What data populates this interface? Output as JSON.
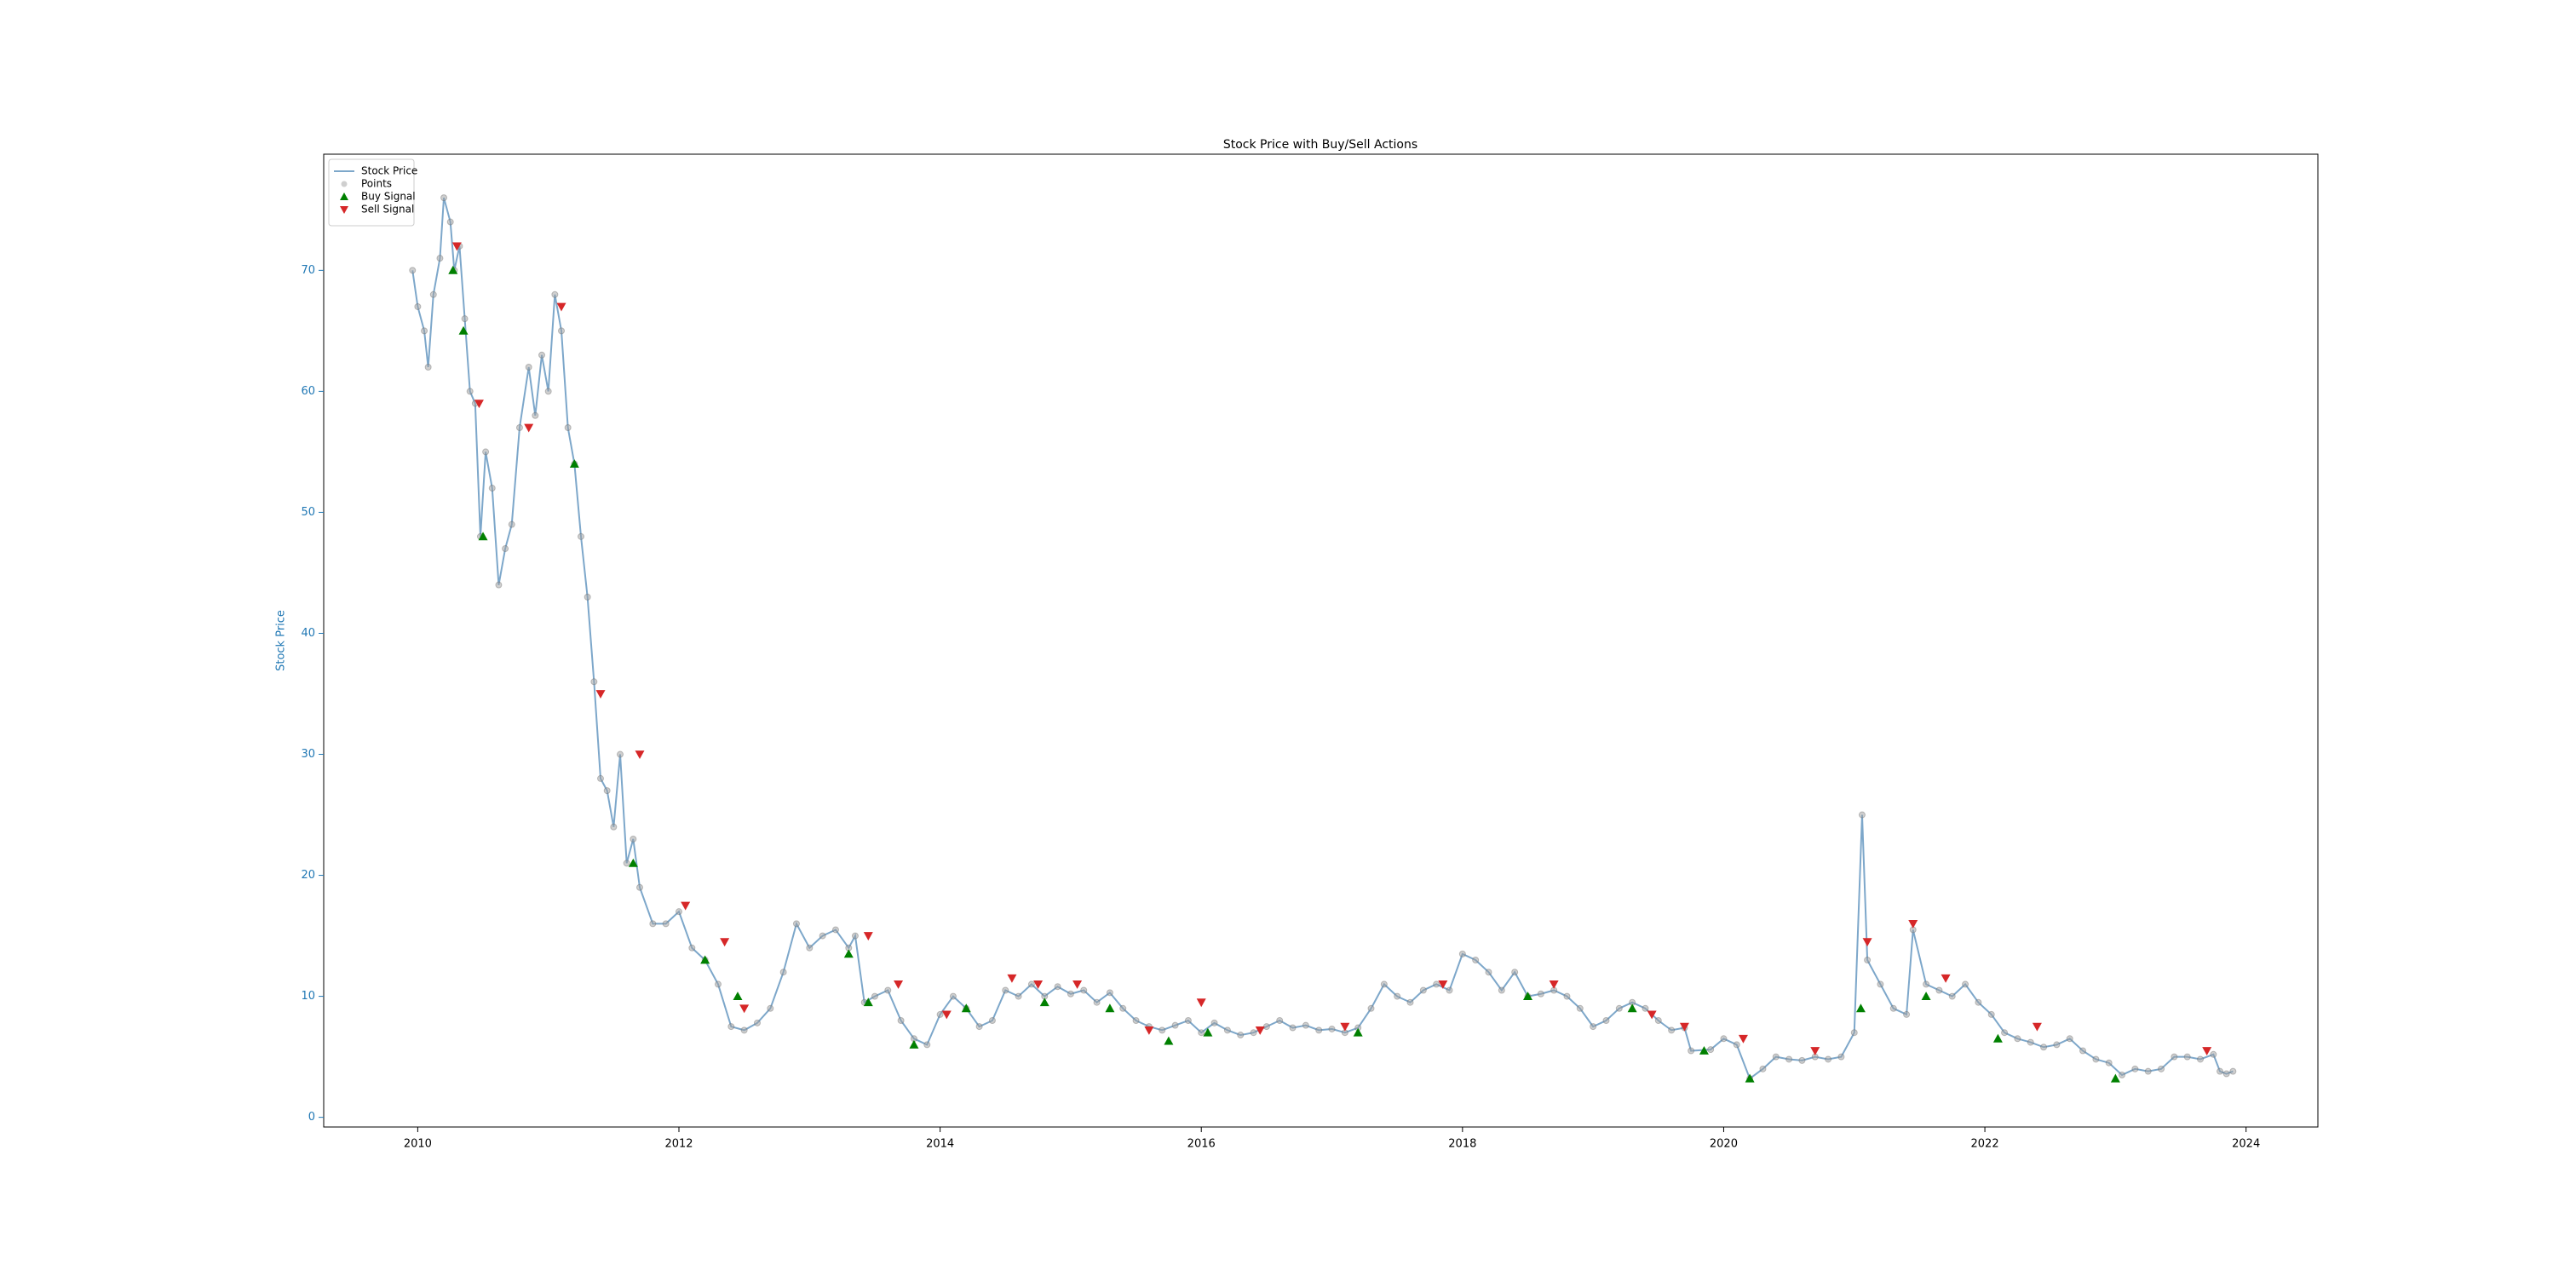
{
  "chart_data": {
    "type": "line",
    "title": "Stock Price with Buy/Sell Actions",
    "y_label": "Stock Price",
    "axis_color": "#1f77b4",
    "xlim": [
      2009.28,
      2024.55
    ],
    "xticks": [
      2010,
      2012,
      2014,
      2016,
      2018,
      2020,
      2022,
      2024
    ],
    "ylim": [
      -0.8,
      79.6
    ],
    "yticks": [
      0,
      10,
      20,
      30,
      40,
      50,
      60,
      70
    ],
    "legend": "upper left",
    "series": [
      {
        "name": "Stock Price",
        "type": "line",
        "color": "#4682b4",
        "x": [
          2009.96,
          2010.0,
          2010.05,
          2010.08,
          2010.12,
          2010.17,
          2010.2,
          2010.25,
          2010.28,
          2010.32,
          2010.36,
          2010.4,
          2010.44,
          2010.48,
          2010.52,
          2010.57,
          2010.62,
          2010.67,
          2010.72,
          2010.78,
          2010.85,
          2010.9,
          2010.95,
          2011.0,
          2011.05,
          2011.1,
          2011.15,
          2011.2,
          2011.25,
          2011.3,
          2011.35,
          2011.4,
          2011.45,
          2011.5,
          2011.55,
          2011.6,
          2011.65,
          2011.7,
          2011.8,
          2011.9,
          2012.0,
          2012.1,
          2012.2,
          2012.3,
          2012.4,
          2012.5,
          2012.6,
          2012.7,
          2012.8,
          2012.9,
          2013.0,
          2013.1,
          2013.2,
          2013.3,
          2013.35,
          2013.42,
          2013.5,
          2013.6,
          2013.7,
          2013.8,
          2013.9,
          2014.0,
          2014.1,
          2014.2,
          2014.3,
          2014.4,
          2014.5,
          2014.6,
          2014.7,
          2014.8,
          2014.9,
          2015.0,
          2015.1,
          2015.2,
          2015.3,
          2015.4,
          2015.5,
          2015.6,
          2015.7,
          2015.8,
          2015.9,
          2016.0,
          2016.1,
          2016.2,
          2016.3,
          2016.4,
          2016.5,
          2016.6,
          2016.7,
          2016.8,
          2016.9,
          2017.0,
          2017.1,
          2017.2,
          2017.3,
          2017.4,
          2017.5,
          2017.6,
          2017.7,
          2017.8,
          2017.9,
          2018.0,
          2018.1,
          2018.2,
          2018.3,
          2018.4,
          2018.5,
          2018.6,
          2018.7,
          2018.8,
          2018.9,
          2019.0,
          2019.1,
          2019.2,
          2019.3,
          2019.4,
          2019.5,
          2019.6,
          2019.7,
          2019.75,
          2019.9,
          2020.0,
          2020.1,
          2020.2,
          2020.3,
          2020.4,
          2020.5,
          2020.6,
          2020.7,
          2020.8,
          2020.9,
          2021.0,
          2021.06,
          2021.1,
          2021.2,
          2021.3,
          2021.4,
          2021.45,
          2021.55,
          2021.65,
          2021.75,
          2021.85,
          2021.95,
          2022.05,
          2022.15,
          2022.25,
          2022.35,
          2022.45,
          2022.55,
          2022.65,
          2022.75,
          2022.85,
          2022.95,
          2023.05,
          2023.15,
          2023.25,
          2023.35,
          2023.45,
          2023.55,
          2023.65,
          2023.75,
          2023.8,
          2023.85,
          2023.9
        ],
        "values": [
          70,
          67,
          65,
          62,
          68,
          71,
          76,
          74,
          70,
          72,
          66,
          60,
          59,
          48,
          55,
          52,
          44,
          47,
          49,
          57,
          62,
          58,
          63,
          60,
          68,
          65,
          57,
          54,
          48,
          43,
          36,
          28,
          27,
          24,
          30,
          21,
          23,
          19,
          16,
          16,
          17,
          14,
          13,
          11,
          7.5,
          7.2,
          7.8,
          9,
          12,
          16,
          14,
          15,
          15.5,
          14,
          15,
          9.5,
          10,
          10.5,
          8,
          6.5,
          6,
          8.5,
          10,
          9,
          7.5,
          8,
          10.5,
          10,
          11,
          10,
          10.8,
          10.2,
          10.5,
          9.5,
          10.3,
          9,
          8,
          7.5,
          7.2,
          7.6,
          8,
          7,
          7.8,
          7.2,
          6.8,
          7,
          7.5,
          8,
          7.4,
          7.6,
          7.2,
          7.3,
          7,
          7.4,
          9,
          11,
          10,
          9.5,
          10.5,
          11,
          10.5,
          13.5,
          13,
          12,
          10.5,
          12,
          10,
          10.2,
          10.5,
          10,
          9,
          7.5,
          8,
          9,
          9.5,
          9,
          8,
          7.2,
          7.4,
          5.5,
          5.6,
          6.5,
          6,
          3.2,
          4,
          5,
          4.8,
          4.7,
          5,
          4.8,
          5,
          7,
          25,
          13,
          11,
          9,
          8.5,
          15.5,
          11,
          10.5,
          10,
          11,
          9.5,
          8.5,
          7,
          6.5,
          6.2,
          5.8,
          6,
          6.5,
          5.5,
          4.8,
          4.5,
          3.5,
          4,
          3.8,
          4,
          5,
          5,
          4.8,
          5.2,
          3.8,
          3.6,
          3.8
        ]
      },
      {
        "name": "Points",
        "type": "points",
        "color": "#a0a0a0"
      },
      {
        "name": "Buy Signal",
        "type": "scatter",
        "marker": "up",
        "color": "#008000",
        "x": [
          2010.27,
          2010.35,
          2010.5,
          2011.2,
          2011.65,
          2012.2,
          2012.45,
          2013.3,
          2013.45,
          2013.8,
          2014.2,
          2014.8,
          2015.3,
          2015.75,
          2016.05,
          2017.2,
          2018.5,
          2019.3,
          2019.85,
          2020.2,
          2021.05,
          2021.55,
          2022.1,
          2023.0
        ],
        "values": [
          70,
          65,
          48,
          54,
          21,
          13,
          10,
          13.5,
          9.5,
          6,
          9,
          9.5,
          9,
          6.3,
          7,
          7,
          10,
          9,
          5.5,
          3.2,
          9,
          10,
          6.5,
          3.2
        ]
      },
      {
        "name": "Sell Signal",
        "type": "scatter",
        "marker": "down",
        "color": "#d62728",
        "x": [
          2010.3,
          2010.47,
          2010.85,
          2011.1,
          2011.4,
          2011.7,
          2012.05,
          2012.35,
          2012.5,
          2013.45,
          2013.68,
          2014.05,
          2014.55,
          2014.75,
          2015.05,
          2015.6,
          2016.0,
          2016.45,
          2017.1,
          2017.85,
          2018.7,
          2019.45,
          2019.7,
          2020.15,
          2020.7,
          2021.1,
          2021.45,
          2021.7,
          2022.4,
          2023.7
        ],
        "values": [
          72,
          59,
          57,
          67,
          35,
          30,
          17.5,
          14.5,
          9,
          15,
          11,
          8.5,
          11.5,
          11,
          11,
          7.2,
          9.5,
          7.2,
          7.5,
          11,
          11,
          8.5,
          7.5,
          6.5,
          5.5,
          14.5,
          16,
          11.5,
          7.5,
          5.5
        ]
      }
    ]
  }
}
